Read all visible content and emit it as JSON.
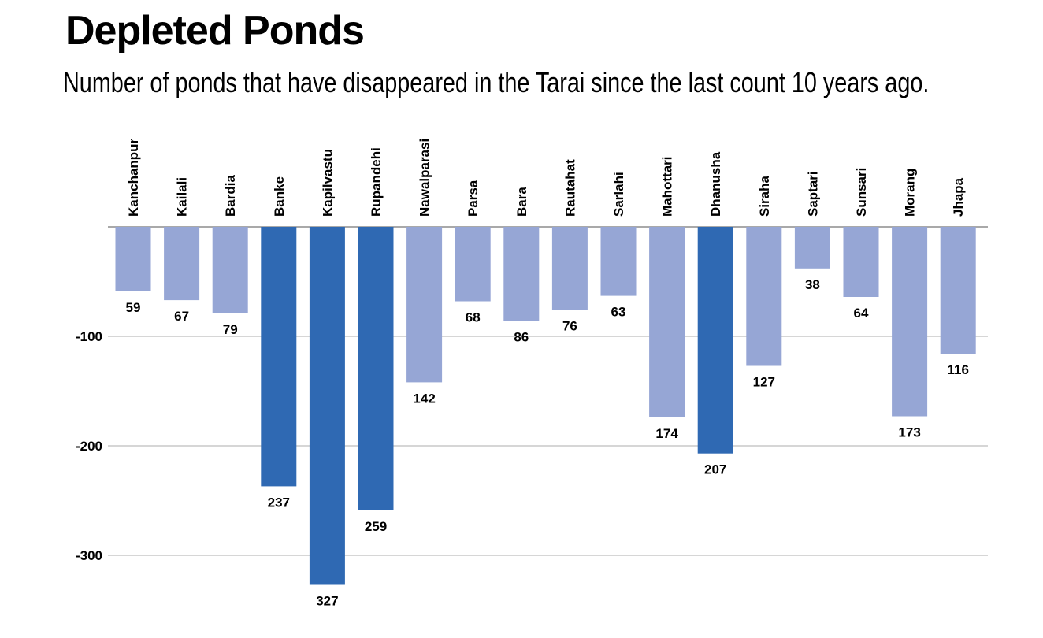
{
  "title": "Depleted Ponds",
  "subtitle": "Number of ponds that have disappeared in the Tarai since the last count 10 years ago.",
  "colors": {
    "highlight": "#2f69b3",
    "normal": "#96a6d5",
    "grid": "#c8c8c8",
    "zero_line": "#a9a9a9",
    "text": "#000000"
  },
  "chart_data": {
    "type": "bar",
    "orientation": "vertical, bars hang downward from zero",
    "categories": [
      "Kanchanpur",
      "Kailali",
      "Bardia",
      "Banke",
      "Kapilvastu",
      "Rupandehi",
      "Nawalparasi",
      "Parsa",
      "Bara",
      "Rautahat",
      "Sarlahi",
      "Mahottari",
      "Dhanusha",
      "Siraha",
      "Saptari",
      "Sunsari",
      "Morang",
      "Jhapa"
    ],
    "values": [
      -59,
      -67,
      -79,
      -237,
      -327,
      -259,
      -142,
      -68,
      -86,
      -76,
      -63,
      -174,
      -207,
      -127,
      -38,
      -64,
      -173,
      -116
    ],
    "data_labels": [
      "59",
      "67",
      "79",
      "237",
      "327",
      "259",
      "142",
      "68",
      "86",
      "76",
      "63",
      "174",
      "207",
      "127",
      "38",
      "64",
      "173",
      "116"
    ],
    "highlighted_categories": [
      "Banke",
      "Kapilvastu",
      "Rupandehi",
      "Dhanusha"
    ],
    "y_ticks": [
      -100,
      -200,
      -300
    ],
    "y_tick_labels": [
      "-100",
      "-200",
      "-300"
    ],
    "ylim": [
      -327,
      0
    ],
    "category_label_position": "top, rotated vertical",
    "grid": true,
    "legend": "none"
  }
}
